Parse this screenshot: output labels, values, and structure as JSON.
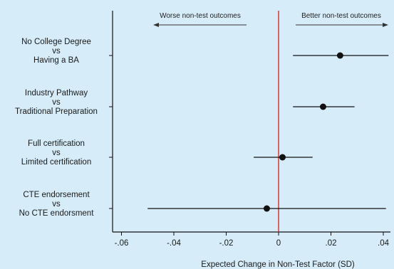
{
  "chart_data": {
    "type": "scatter",
    "subtype": "forest-plot",
    "xlabel": "Expected Change in Non-Test Factor (SD)",
    "xlim": [
      -0.063,
      0.043
    ],
    "x_ticks": [
      {
        "value": -0.06,
        "label": "-.06"
      },
      {
        "value": -0.04,
        "label": "-.04"
      },
      {
        "value": -0.02,
        "label": "-.02"
      },
      {
        "value": 0,
        "label": "0"
      },
      {
        "value": 0.02,
        "label": ".02"
      },
      {
        "value": 0.04,
        "label": ".04"
      }
    ],
    "reference_line": {
      "x": 0,
      "color": "#d42a2a"
    },
    "annotations": {
      "left": "Worse non-test outcomes",
      "right": "Better non-test outcomes"
    },
    "categories": [
      [
        "No College Degree",
        "vs",
        "Having a BA"
      ],
      [
        "Industry Pathway",
        "vs",
        "Traditional Preparation"
      ],
      [
        "Full certification",
        "vs",
        "Limited certification"
      ],
      [
        "CTE endorsement",
        "vs",
        "No CTE endorsment"
      ]
    ],
    "estimates": [
      {
        "point": 0.0235,
        "ci_low": 0.0055,
        "ci_high": 0.042
      },
      {
        "point": 0.017,
        "ci_low": 0.0055,
        "ci_high": 0.029
      },
      {
        "point": 0.0015,
        "ci_low": -0.0095,
        "ci_high": 0.013
      },
      {
        "point": -0.0045,
        "ci_low": -0.05,
        "ci_high": 0.041
      }
    ],
    "colors": {
      "point": "#111111",
      "ci": "#111111",
      "axis": "#111111",
      "background": "#d6ecf8"
    }
  }
}
